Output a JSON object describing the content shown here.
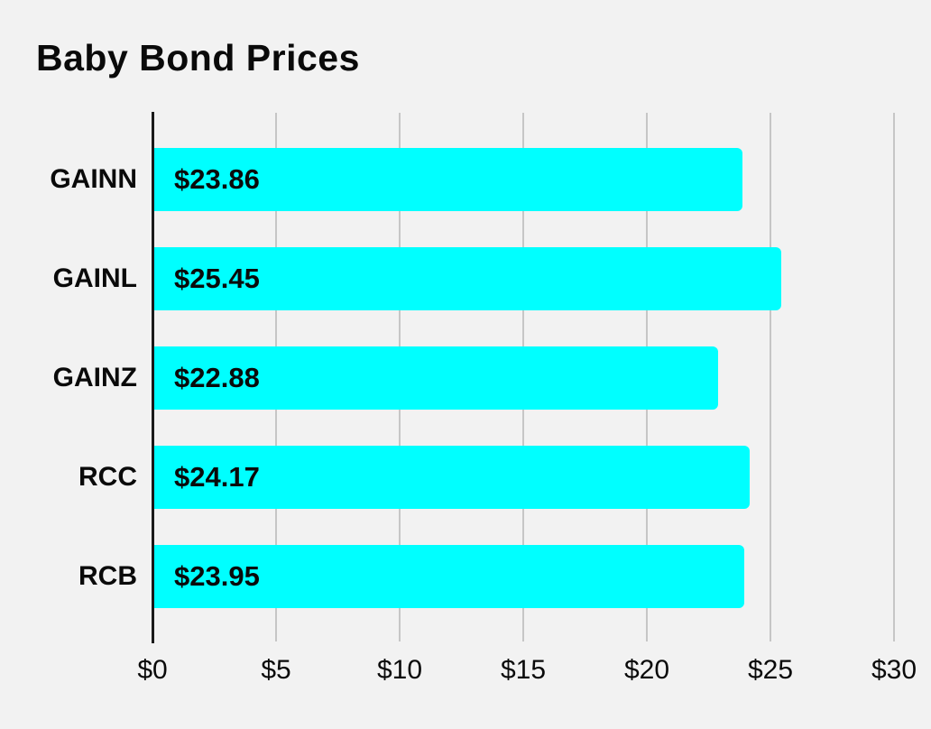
{
  "chart_data": {
    "type": "bar",
    "orientation": "horizontal",
    "title": "Baby Bond Prices",
    "categories": [
      "GAINN",
      "GAINL",
      "GAINZ",
      "RCC",
      "RCB"
    ],
    "values": [
      23.86,
      25.45,
      22.88,
      24.17,
      23.95
    ],
    "value_labels": [
      "$23.86",
      "$25.45",
      "$22.88",
      "$24.17",
      "$23.95"
    ],
    "xlabel": "",
    "ylabel": "",
    "xlim": [
      0,
      30
    ],
    "x_ticks": [
      0,
      5,
      10,
      15,
      20,
      25,
      30
    ],
    "x_tick_labels": [
      "$0",
      "$5",
      "$10",
      "$15",
      "$20",
      "$25",
      "$30"
    ],
    "grid": true,
    "legend": false,
    "colors": {
      "bar": "#00FFFF",
      "background": "#F2F2F2",
      "gridline": "#C6C6C6",
      "axis": "#1A1A1A",
      "text": "#0A0A0A"
    }
  }
}
